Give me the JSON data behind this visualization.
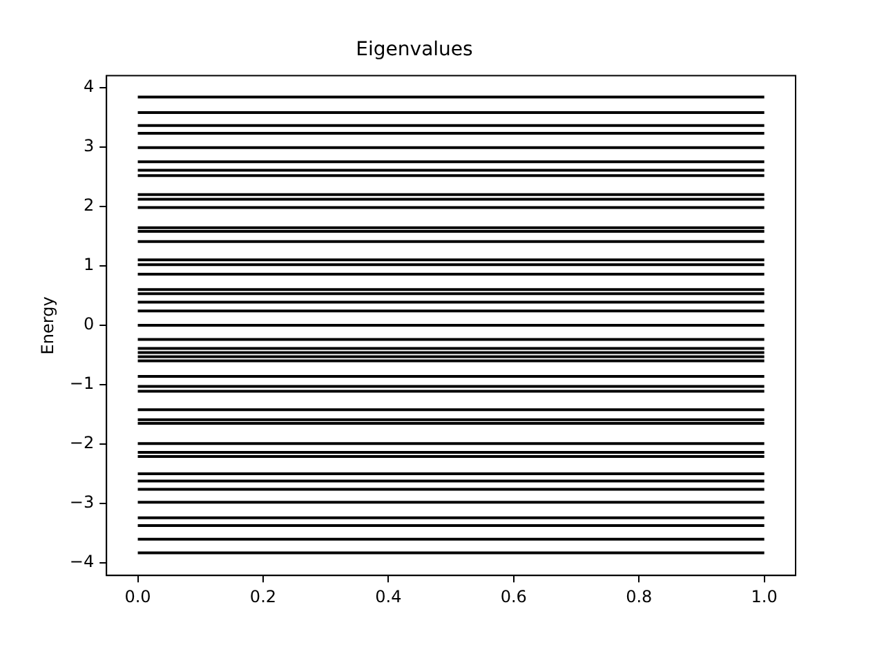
{
  "chart_data": {
    "type": "line",
    "title": "Eigenvalues",
    "ylabel": "Energy",
    "xlim": [
      -0.05,
      1.05
    ],
    "ylim": [
      -4.21,
      4.2
    ],
    "xticks": [
      {
        "value": 0,
        "label": "0.0"
      },
      {
        "value": 0.2,
        "label": "0.2"
      },
      {
        "value": 0.4,
        "label": "0.4"
      },
      {
        "value": 0.6,
        "label": "0.6"
      },
      {
        "value": 0.8,
        "label": "0.8"
      },
      {
        "value": 1,
        "label": "1.0"
      }
    ],
    "yticks": [
      {
        "value": -4,
        "label": "−4"
      },
      {
        "value": -3,
        "label": "−3"
      },
      {
        "value": -2,
        "label": "−2"
      },
      {
        "value": -1,
        "label": "−1"
      },
      0,
      1,
      2,
      3,
      4
    ],
    "grid": false,
    "legend": false,
    "x": [
      0,
      1
    ],
    "series": [
      {
        "color": "#000000",
        "values": [
          3.84,
          3.84
        ]
      },
      {
        "color": "#000000",
        "values": [
          3.58,
          3.58
        ]
      },
      {
        "color": "#000000",
        "values": [
          3.36,
          3.36
        ]
      },
      {
        "color": "#000000",
        "values": [
          3.23,
          3.23
        ]
      },
      {
        "color": "#000000",
        "values": [
          2.99,
          2.99
        ]
      },
      {
        "color": "#000000",
        "values": [
          2.75,
          2.75
        ]
      },
      {
        "color": "#000000",
        "values": [
          2.61,
          2.61
        ]
      },
      {
        "color": "#000000",
        "values": [
          2.52,
          2.52
        ]
      },
      {
        "color": "#000000",
        "values": [
          2.2,
          2.2
        ]
      },
      {
        "color": "#000000",
        "values": [
          2.12,
          2.12
        ]
      },
      {
        "color": "#000000",
        "values": [
          1.98,
          1.98
        ]
      },
      {
        "color": "#000000",
        "values": [
          1.64,
          1.64
        ]
      },
      {
        "color": "#000000",
        "values": [
          1.58,
          1.58
        ]
      },
      {
        "color": "#000000",
        "values": [
          1.41,
          1.41
        ]
      },
      {
        "color": "#000000",
        "values": [
          1.1,
          1.1
        ]
      },
      {
        "color": "#000000",
        "values": [
          1.02,
          1.02
        ]
      },
      {
        "color": "#000000",
        "values": [
          0.86,
          0.86
        ]
      },
      {
        "color": "#000000",
        "values": [
          0.6,
          0.6
        ]
      },
      {
        "color": "#000000",
        "values": [
          0.53,
          0.53
        ]
      },
      {
        "color": "#000000",
        "values": [
          0.39,
          0.39
        ]
      },
      {
        "color": "#000000",
        "values": [
          0.24,
          0.24
        ]
      },
      {
        "color": "#000000",
        "values": [
          0,
          0
        ]
      },
      {
        "color": "#000000",
        "values": [
          -0.24,
          -0.24
        ]
      },
      {
        "color": "#000000",
        "values": [
          -0.39,
          -0.39
        ]
      },
      {
        "color": "#000000",
        "values": [
          -0.46,
          -0.46
        ]
      },
      {
        "color": "#000000",
        "values": [
          -0.53,
          -0.53
        ]
      },
      {
        "color": "#000000",
        "values": [
          -0.6,
          -0.6
        ]
      },
      {
        "color": "#000000",
        "values": [
          -0.86,
          -0.86
        ]
      },
      {
        "color": "#000000",
        "values": [
          -1.03,
          -1.03
        ]
      },
      {
        "color": "#000000",
        "values": [
          -1.11,
          -1.11
        ]
      },
      {
        "color": "#000000",
        "values": [
          -1.42,
          -1.42
        ]
      },
      {
        "color": "#000000",
        "values": [
          -1.59,
          -1.59
        ]
      },
      {
        "color": "#000000",
        "values": [
          -1.65,
          -1.65
        ]
      },
      {
        "color": "#000000",
        "values": [
          -1.99,
          -1.99
        ]
      },
      {
        "color": "#000000",
        "values": [
          -2.14,
          -2.14
        ]
      },
      {
        "color": "#000000",
        "values": [
          -2.21,
          -2.21
        ]
      },
      {
        "color": "#000000",
        "values": [
          -2.5,
          -2.5
        ]
      },
      {
        "color": "#000000",
        "values": [
          -2.62,
          -2.62
        ]
      },
      {
        "color": "#000000",
        "values": [
          -2.76,
          -2.76
        ]
      },
      {
        "color": "#000000",
        "values": [
          -2.98,
          -2.98
        ]
      },
      {
        "color": "#000000",
        "values": [
          -3.24,
          -3.24
        ]
      },
      {
        "color": "#000000",
        "values": [
          -3.37,
          -3.37
        ]
      },
      {
        "color": "#000000",
        "values": [
          -3.6,
          -3.6
        ]
      },
      {
        "color": "#000000",
        "values": [
          -3.83,
          -3.83
        ]
      }
    ]
  }
}
